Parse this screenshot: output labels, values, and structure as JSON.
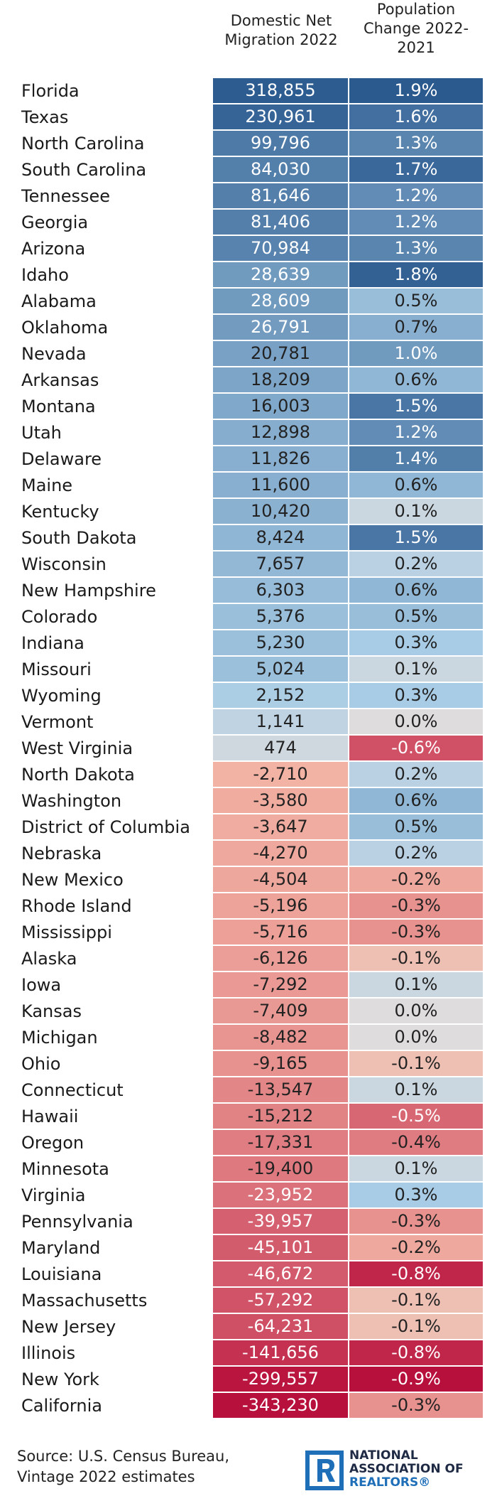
{
  "header": {
    "migration_label": "Domestic Net Migration 2022",
    "popchange_label": "Population Change 2022-2021"
  },
  "chart_data": {
    "type": "table",
    "columns": [
      "Domestic Net Migration 2022",
      "Population Change 2022-2021"
    ],
    "rows": [
      {
        "state": "Florida",
        "migration": "318,855",
        "pop_change": "1.9%",
        "mig_value": 318855,
        "pop_value": 1.9
      },
      {
        "state": "Texas",
        "migration": "230,961",
        "pop_change": "1.6%",
        "mig_value": 230961,
        "pop_value": 1.6
      },
      {
        "state": "North Carolina",
        "migration": "99,796",
        "pop_change": "1.3%",
        "mig_value": 99796,
        "pop_value": 1.3
      },
      {
        "state": "South Carolina",
        "migration": "84,030",
        "pop_change": "1.7%",
        "mig_value": 84030,
        "pop_value": 1.7
      },
      {
        "state": "Tennessee",
        "migration": "81,646",
        "pop_change": "1.2%",
        "mig_value": 81646,
        "pop_value": 1.2
      },
      {
        "state": "Georgia",
        "migration": "81,406",
        "pop_change": "1.2%",
        "mig_value": 81406,
        "pop_value": 1.2
      },
      {
        "state": "Arizona",
        "migration": "70,984",
        "pop_change": "1.3%",
        "mig_value": 70984,
        "pop_value": 1.3
      },
      {
        "state": "Idaho",
        "migration": "28,639",
        "pop_change": "1.8%",
        "mig_value": 28639,
        "pop_value": 1.8
      },
      {
        "state": "Alabama",
        "migration": "28,609",
        "pop_change": "0.5%",
        "mig_value": 28609,
        "pop_value": 0.5
      },
      {
        "state": "Oklahoma",
        "migration": "26,791",
        "pop_change": "0.7%",
        "mig_value": 26791,
        "pop_value": 0.7
      },
      {
        "state": "Nevada",
        "migration": "20,781",
        "pop_change": "1.0%",
        "mig_value": 20781,
        "pop_value": 1.0
      },
      {
        "state": "Arkansas",
        "migration": "18,209",
        "pop_change": "0.6%",
        "mig_value": 18209,
        "pop_value": 0.6
      },
      {
        "state": "Montana",
        "migration": "16,003",
        "pop_change": "1.5%",
        "mig_value": 16003,
        "pop_value": 1.5
      },
      {
        "state": "Utah",
        "migration": "12,898",
        "pop_change": "1.2%",
        "mig_value": 12898,
        "pop_value": 1.2
      },
      {
        "state": "Delaware",
        "migration": "11,826",
        "pop_change": "1.4%",
        "mig_value": 11826,
        "pop_value": 1.4
      },
      {
        "state": "Maine",
        "migration": "11,600",
        "pop_change": "0.6%",
        "mig_value": 11600,
        "pop_value": 0.6
      },
      {
        "state": "Kentucky",
        "migration": "10,420",
        "pop_change": "0.1%",
        "mig_value": 10420,
        "pop_value": 0.1
      },
      {
        "state": "South Dakota",
        "migration": "8,424",
        "pop_change": "1.5%",
        "mig_value": 8424,
        "pop_value": 1.5
      },
      {
        "state": "Wisconsin",
        "migration": "7,657",
        "pop_change": "0.2%",
        "mig_value": 7657,
        "pop_value": 0.2
      },
      {
        "state": "New Hampshire",
        "migration": "6,303",
        "pop_change": "0.6%",
        "mig_value": 6303,
        "pop_value": 0.6
      },
      {
        "state": "Colorado",
        "migration": "5,376",
        "pop_change": "0.5%",
        "mig_value": 5376,
        "pop_value": 0.5
      },
      {
        "state": "Indiana",
        "migration": "5,230",
        "pop_change": "0.3%",
        "mig_value": 5230,
        "pop_value": 0.3
      },
      {
        "state": "Missouri",
        "migration": "5,024",
        "pop_change": "0.1%",
        "mig_value": 5024,
        "pop_value": 0.1
      },
      {
        "state": "Wyoming",
        "migration": "2,152",
        "pop_change": "0.3%",
        "mig_value": 2152,
        "pop_value": 0.3
      },
      {
        "state": "Vermont",
        "migration": "1,141",
        "pop_change": "0.0%",
        "mig_value": 1141,
        "pop_value": 0.0
      },
      {
        "state": "West Virginia",
        "migration": "474",
        "pop_change": "-0.6%",
        "mig_value": 474,
        "pop_value": -0.6
      },
      {
        "state": "North Dakota",
        "migration": "-2,710",
        "pop_change": "0.2%",
        "mig_value": -2710,
        "pop_value": 0.2
      },
      {
        "state": "Washington",
        "migration": "-3,580",
        "pop_change": "0.6%",
        "mig_value": -3580,
        "pop_value": 0.6
      },
      {
        "state": "District of Columbia",
        "migration": "-3,647",
        "pop_change": "0.5%",
        "mig_value": -3647,
        "pop_value": 0.5
      },
      {
        "state": "Nebraska",
        "migration": "-4,270",
        "pop_change": "0.2%",
        "mig_value": -4270,
        "pop_value": 0.2
      },
      {
        "state": "New Mexico",
        "migration": "-4,504",
        "pop_change": "-0.2%",
        "mig_value": -4504,
        "pop_value": -0.2
      },
      {
        "state": "Rhode Island",
        "migration": "-5,196",
        "pop_change": "-0.3%",
        "mig_value": -5196,
        "pop_value": -0.3
      },
      {
        "state": "Mississippi",
        "migration": "-5,716",
        "pop_change": "-0.3%",
        "mig_value": -5716,
        "pop_value": -0.3
      },
      {
        "state": "Alaska",
        "migration": "-6,126",
        "pop_change": "-0.1%",
        "mig_value": -6126,
        "pop_value": -0.1
      },
      {
        "state": "Iowa",
        "migration": "-7,292",
        "pop_change": "0.1%",
        "mig_value": -7292,
        "pop_value": 0.1
      },
      {
        "state": "Kansas",
        "migration": "-7,409",
        "pop_change": "0.0%",
        "mig_value": -7409,
        "pop_value": 0.0
      },
      {
        "state": "Michigan",
        "migration": "-8,482",
        "pop_change": "0.0%",
        "mig_value": -8482,
        "pop_value": 0.0
      },
      {
        "state": "Ohio",
        "migration": "-9,165",
        "pop_change": "-0.1%",
        "mig_value": -9165,
        "pop_value": -0.1
      },
      {
        "state": "Connecticut",
        "migration": "-13,547",
        "pop_change": "0.1%",
        "mig_value": -13547,
        "pop_value": 0.1
      },
      {
        "state": "Hawaii",
        "migration": "-15,212",
        "pop_change": "-0.5%",
        "mig_value": -15212,
        "pop_value": -0.5
      },
      {
        "state": "Oregon",
        "migration": "-17,331",
        "pop_change": "-0.4%",
        "mig_value": -17331,
        "pop_value": -0.4
      },
      {
        "state": "Minnesota",
        "migration": "-19,400",
        "pop_change": "0.1%",
        "mig_value": -19400,
        "pop_value": 0.1
      },
      {
        "state": "Virginia",
        "migration": "-23,952",
        "pop_change": "0.3%",
        "mig_value": -23952,
        "pop_value": 0.3
      },
      {
        "state": "Pennsylvania",
        "migration": "-39,957",
        "pop_change": "-0.3%",
        "mig_value": -39957,
        "pop_value": -0.3
      },
      {
        "state": "Maryland",
        "migration": "-45,101",
        "pop_change": "-0.2%",
        "mig_value": -45101,
        "pop_value": -0.2
      },
      {
        "state": "Louisiana",
        "migration": "-46,672",
        "pop_change": "-0.8%",
        "mig_value": -46672,
        "pop_value": -0.8
      },
      {
        "state": "Massachusetts",
        "migration": "-57,292",
        "pop_change": "-0.1%",
        "mig_value": -57292,
        "pop_value": -0.1
      },
      {
        "state": "New Jersey",
        "migration": "-64,231",
        "pop_change": "-0.1%",
        "mig_value": -64231,
        "pop_value": -0.1
      },
      {
        "state": "Illinois",
        "migration": "-141,656",
        "pop_change": "-0.8%",
        "mig_value": -141656,
        "pop_value": -0.8
      },
      {
        "state": "New York",
        "migration": "-299,557",
        "pop_change": "-0.9%",
        "mig_value": -299557,
        "pop_value": -0.9
      },
      {
        "state": "California",
        "migration": "-343,230",
        "pop_change": "-0.3%",
        "mig_value": -343230,
        "pop_value": -0.3
      }
    ]
  },
  "colors": {
    "blue_dark": "#2b5a8f",
    "blue_light": "#a9cde6",
    "neutral": "#dedcdc",
    "red_light": "#f4b6a6",
    "red_dark": "#b8103c",
    "light_text": "#ffffff",
    "dark_text": "#222222"
  },
  "footer": {
    "source_line1": "Source: U.S. Census Bureau,",
    "source_line2": "Vintage 2022 estimates"
  },
  "logo": {
    "line1": "NATIONAL",
    "line2": "ASSOCIATION OF",
    "line3": "REALTORS®",
    "icon": "realtor-r-logo-icon"
  }
}
